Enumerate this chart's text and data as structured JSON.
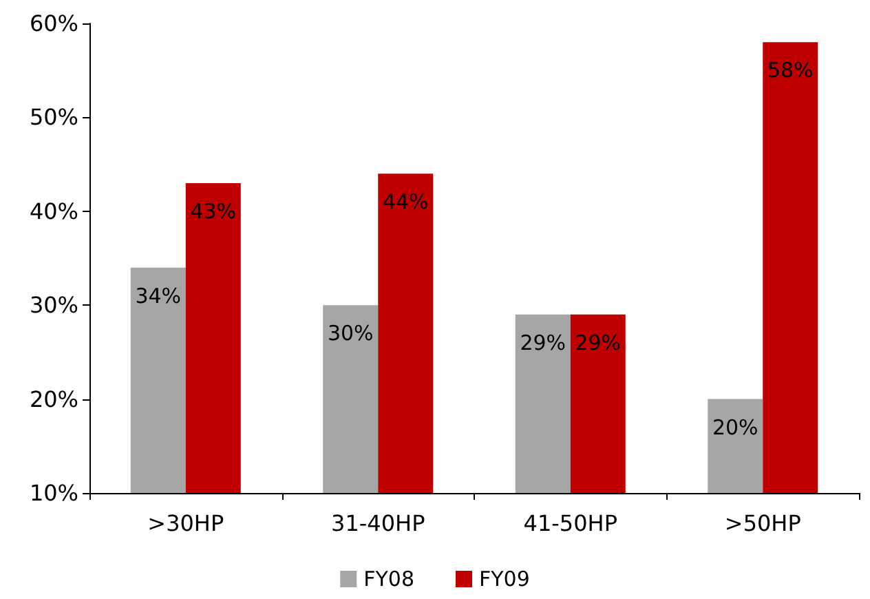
{
  "chart_data": {
    "type": "bar",
    "categories": [
      ">30HP",
      "31-40HP",
      "41-50HP",
      ">50HP"
    ],
    "series": [
      {
        "name": "FY08",
        "color": "#a6a6a6",
        "values": [
          34,
          30,
          29,
          20
        ],
        "value_labels": [
          "34%",
          "30%",
          "29%",
          "20%"
        ]
      },
      {
        "name": "FY09",
        "color": "#c00000",
        "values": [
          43,
          44,
          29,
          58
        ],
        "value_labels": [
          "43%",
          "44%",
          "29%",
          "58%"
        ]
      }
    ],
    "ylim": [
      10,
      60
    ],
    "yticks": [
      {
        "value": 10,
        "label": "10%"
      },
      {
        "value": 20,
        "label": "20%"
      },
      {
        "value": 30,
        "label": "30%"
      },
      {
        "value": 40,
        "label": "40%"
      },
      {
        "value": 50,
        "label": "50%"
      },
      {
        "value": 60,
        "label": "60%"
      }
    ],
    "grid": false,
    "legend": "bottom"
  }
}
